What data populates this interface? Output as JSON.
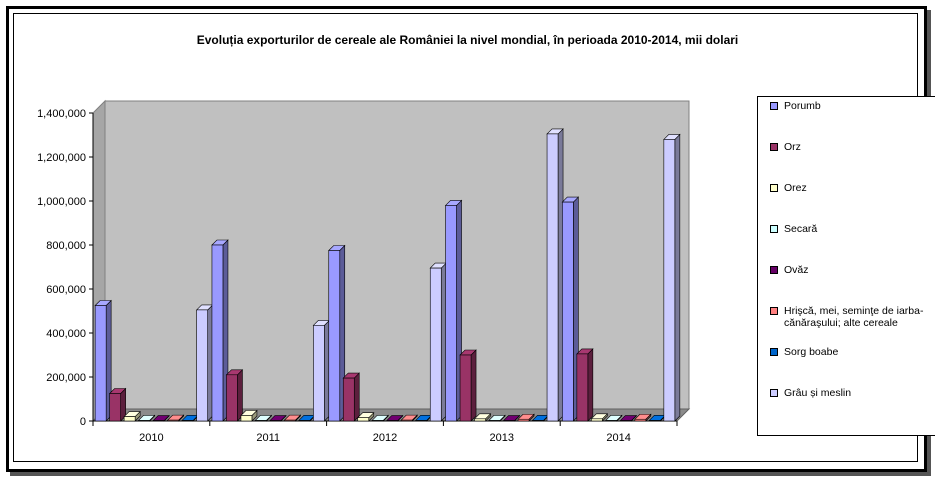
{
  "chart_data": {
    "type": "bar",
    "title": "Evoluția exporturilor de cereale ale României la nivel mondial, în perioada 2010-2014, mii dolari",
    "categories": [
      "2010",
      "2011",
      "2012",
      "2013",
      "2014"
    ],
    "ylim": [
      0,
      1400000
    ],
    "yticks": [
      "0",
      "200,000",
      "400,000",
      "600,000",
      "800,000",
      "1,000,000",
      "1,200,000",
      "1,400,000"
    ],
    "grid": false,
    "legend_position": "right",
    "series": [
      {
        "name": "Porumb",
        "color": "#9999ff",
        "values": [
          525000,
          800000,
          775000,
          980000,
          995000
        ]
      },
      {
        "name": "Orz",
        "color": "#993366",
        "values": [
          125000,
          210000,
          195000,
          300000,
          305000
        ]
      },
      {
        "name": "Orez",
        "color": "#ffffcc",
        "values": [
          20000,
          25000,
          15000,
          10000,
          10000
        ]
      },
      {
        "name": "Secară",
        "color": "#ccffff",
        "values": [
          3000,
          3000,
          3000,
          3000,
          3000
        ]
      },
      {
        "name": "Ovăz",
        "color": "#660066",
        "values": [
          2000,
          2000,
          2000,
          2000,
          2000
        ]
      },
      {
        "name": "Hrişcă, mei, seminţe de iarba-cănăraşului; alte cereale",
        "color": "#ff8080",
        "values": [
          4000,
          4000,
          4000,
          8000,
          8000
        ]
      },
      {
        "name": "Sorg boabe",
        "color": "#0066cc",
        "values": [
          3000,
          3000,
          3000,
          3000,
          3000
        ]
      },
      {
        "name": "Grâu și meslin",
        "color": "#ccccff",
        "values": [
          505000,
          435000,
          695000,
          1305000,
          1280000
        ]
      }
    ]
  }
}
